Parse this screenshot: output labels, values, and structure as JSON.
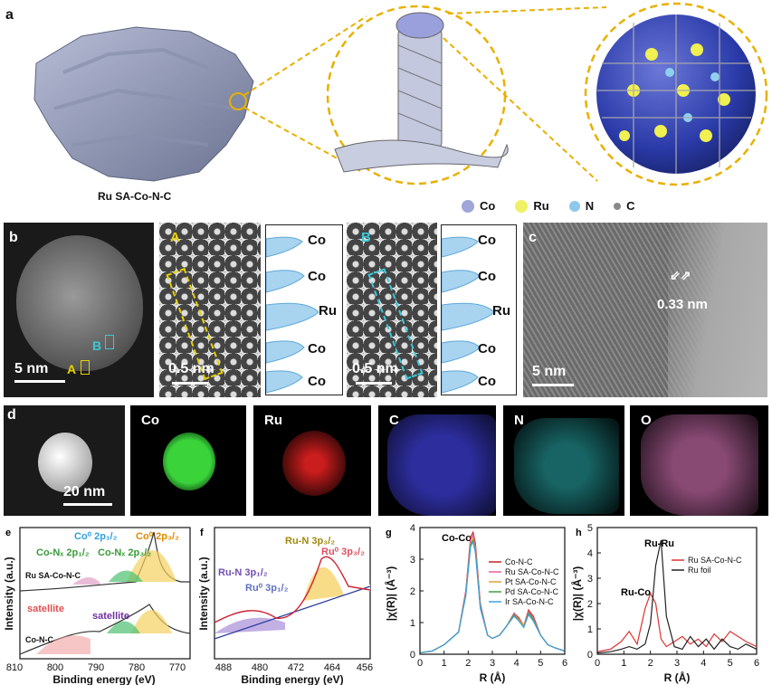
{
  "panel_a": {
    "label": "a",
    "caption": "Ru SA-Co-N-C",
    "legend": [
      {
        "name": "Co",
        "color": "#9fa6d8"
      },
      {
        "name": "Ru",
        "color": "#f0f064"
      },
      {
        "name": "N",
        "color": "#8fc8ea"
      },
      {
        "name": "C",
        "color": "#888888"
      }
    ]
  },
  "panel_b": {
    "label": "b",
    "scale_main": "5 nm",
    "marker_a": "A",
    "marker_b": "B",
    "zoom_a": {
      "tag": "A",
      "scale": "0.5 nm"
    },
    "zoom_b": {
      "tag": "B",
      "scale": "0.5 nm"
    },
    "profile_a": [
      "Co",
      "Co",
      "Ru",
      "Co",
      "Co"
    ],
    "profile_b": [
      "Co",
      "Co",
      "Ru",
      "Co",
      "Co"
    ]
  },
  "panel_c": {
    "label": "c",
    "spacing": "0.33 nm",
    "scale": "5 nm"
  },
  "panel_d": {
    "label": "d",
    "scale": "20 nm",
    "maps": [
      {
        "element": "Co",
        "color": "#3ad43a"
      },
      {
        "element": "Ru",
        "color": "#e02020"
      },
      {
        "element": "C",
        "color": "#3a3acc"
      },
      {
        "element": "N",
        "color": "#30c8c8"
      },
      {
        "element": "O",
        "color": "#d070b0"
      }
    ]
  },
  "panel_e": {
    "label": "e",
    "xlabel": "Binding energy (eV)",
    "ylabel": "Intensity (a.u.)",
    "xticks": [
      "810",
      "800",
      "790",
      "780",
      "770"
    ],
    "sample_top": "Ru SA-Co-N-C",
    "sample_bottom": "Co-N-C",
    "anno_co0_1": "Co⁰ 2p₁/₂",
    "anno_co0_3": "Co⁰ 2p₃/₂",
    "anno_conx_1": "Co-Nₓ 2p₁/₂",
    "anno_conx_3": "Co-Nₓ 2p₃/₂",
    "anno_sat1": "satellite",
    "anno_sat2": "satellite"
  },
  "panel_f": {
    "label": "f",
    "xlabel": "Binding energy (eV)",
    "ylabel": "Intensity (a.u.)",
    "xticks": [
      "488",
      "480",
      "472",
      "464",
      "456"
    ],
    "anno_run_3": "Ru-N 3p₃/₂",
    "anno_ru0_3": "Ru⁰ 3p₃/₂",
    "anno_run_1": "Ru-N 3p₁/₂",
    "anno_ru0_1": "Ru⁰ 3p₁/₂"
  },
  "panel_g": {
    "label": "g",
    "xlabel": "R (Å)",
    "ylabel": "|χ(R)| (Å⁻³)",
    "peak_label": "Co-Co",
    "xticks": [
      "0",
      "1",
      "2",
      "3",
      "4",
      "5",
      "6"
    ],
    "yticks": [
      "0",
      "1",
      "2",
      "3",
      "4"
    ],
    "series": [
      {
        "name": "Co-N-C",
        "color": "#cc2222"
      },
      {
        "name": "Ru SA-Co-N-C",
        "color": "#e060a0"
      },
      {
        "name": "Pt SA-Co-N-C",
        "color": "#e0a030"
      },
      {
        "name": "Pd SA-Co-N-C",
        "color": "#40a040"
      },
      {
        "name": "Ir SA-Co-N-C",
        "color": "#40a0e0"
      }
    ]
  },
  "panel_h": {
    "label": "h",
    "xlabel": "R (Å)",
    "ylabel": "|χ(R)| (Å⁻³)",
    "peak_ruru": "Ru-Ru",
    "peak_ruco": "Ru-Co",
    "xticks": [
      "0",
      "1",
      "2",
      "3",
      "4",
      "5",
      "6"
    ],
    "yticks": [
      "0",
      "1",
      "2",
      "3",
      "4",
      "5"
    ],
    "series": [
      {
        "name": "Ru SA-Co-N-C",
        "color": "#dd3333"
      },
      {
        "name": "Ru foil",
        "color": "#222222"
      }
    ]
  },
  "chart_data": [
    {
      "type": "line",
      "title": "",
      "xlabel": "R (Å)",
      "ylabel": "|χ(R)| (Å⁻³)",
      "xlim": [
        0,
        6
      ],
      "ylim": [
        0,
        4
      ],
      "x": [
        0,
        0.5,
        1.0,
        1.3,
        1.6,
        1.9,
        2.1,
        2.2,
        2.3,
        2.5,
        2.8,
        3.0,
        3.3,
        3.6,
        3.9,
        4.1,
        4.3,
        4.5,
        4.7,
        5.0,
        5.3,
        5.6,
        6.0
      ],
      "series": [
        {
          "name": "Co-N-C",
          "values": [
            0.05,
            0.1,
            0.3,
            0.5,
            0.7,
            2.0,
            3.7,
            3.85,
            3.5,
            1.6,
            0.6,
            0.5,
            0.6,
            0.9,
            1.3,
            1.15,
            0.9,
            1.4,
            1.2,
            0.6,
            0.3,
            0.2,
            0.1
          ]
        },
        {
          "name": "Ru SA-Co-N-C",
          "values": [
            0.05,
            0.1,
            0.3,
            0.5,
            0.7,
            2.0,
            3.6,
            3.75,
            3.4,
            1.6,
            0.6,
            0.5,
            0.6,
            0.9,
            1.3,
            1.1,
            0.9,
            1.35,
            1.15,
            0.6,
            0.3,
            0.2,
            0.1
          ]
        },
        {
          "name": "Pt SA-Co-N-C",
          "values": [
            0.05,
            0.1,
            0.3,
            0.5,
            0.7,
            1.9,
            3.5,
            3.65,
            3.3,
            1.5,
            0.6,
            0.5,
            0.6,
            0.9,
            1.25,
            1.1,
            0.9,
            1.3,
            1.1,
            0.6,
            0.3,
            0.2,
            0.1
          ]
        },
        {
          "name": "Pd SA-Co-N-C",
          "values": [
            0.05,
            0.1,
            0.3,
            0.5,
            0.7,
            1.9,
            3.45,
            3.6,
            3.25,
            1.5,
            0.6,
            0.5,
            0.6,
            0.9,
            1.25,
            1.05,
            0.85,
            1.3,
            1.1,
            0.6,
            0.3,
            0.2,
            0.1
          ]
        },
        {
          "name": "Ir SA-Co-N-C",
          "values": [
            0.05,
            0.1,
            0.3,
            0.5,
            0.7,
            1.85,
            3.4,
            3.55,
            3.2,
            1.45,
            0.6,
            0.5,
            0.6,
            0.9,
            1.2,
            1.05,
            0.85,
            1.25,
            1.05,
            0.6,
            0.3,
            0.2,
            0.1
          ]
        }
      ]
    },
    {
      "type": "line",
      "title": "",
      "xlabel": "R (Å)",
      "ylabel": "|χ(R)| (Å⁻³)",
      "xlim": [
        0,
        6
      ],
      "ylim": [
        0,
        5
      ],
      "x": [
        0,
        0.5,
        0.9,
        1.2,
        1.5,
        1.8,
        2.0,
        2.2,
        2.4,
        2.6,
        2.9,
        3.2,
        3.5,
        3.8,
        4.1,
        4.4,
        4.7,
        5.0,
        5.3,
        5.6,
        6.0
      ],
      "series": [
        {
          "name": "Ru SA-Co-N-C",
          "values": [
            0.1,
            0.2,
            0.5,
            0.9,
            0.4,
            1.8,
            2.4,
            2.0,
            0.6,
            0.3,
            0.5,
            0.7,
            0.4,
            0.6,
            0.3,
            0.8,
            0.5,
            0.9,
            0.7,
            0.5,
            0.3
          ]
        },
        {
          "name": "Ru foil",
          "values": [
            0.05,
            0.1,
            0.2,
            0.3,
            0.2,
            0.4,
            1.2,
            3.5,
            4.5,
            1.5,
            0.3,
            0.2,
            0.7,
            0.3,
            0.6,
            0.2,
            0.6,
            0.3,
            0.2,
            0.4,
            0.2
          ]
        }
      ]
    }
  ]
}
